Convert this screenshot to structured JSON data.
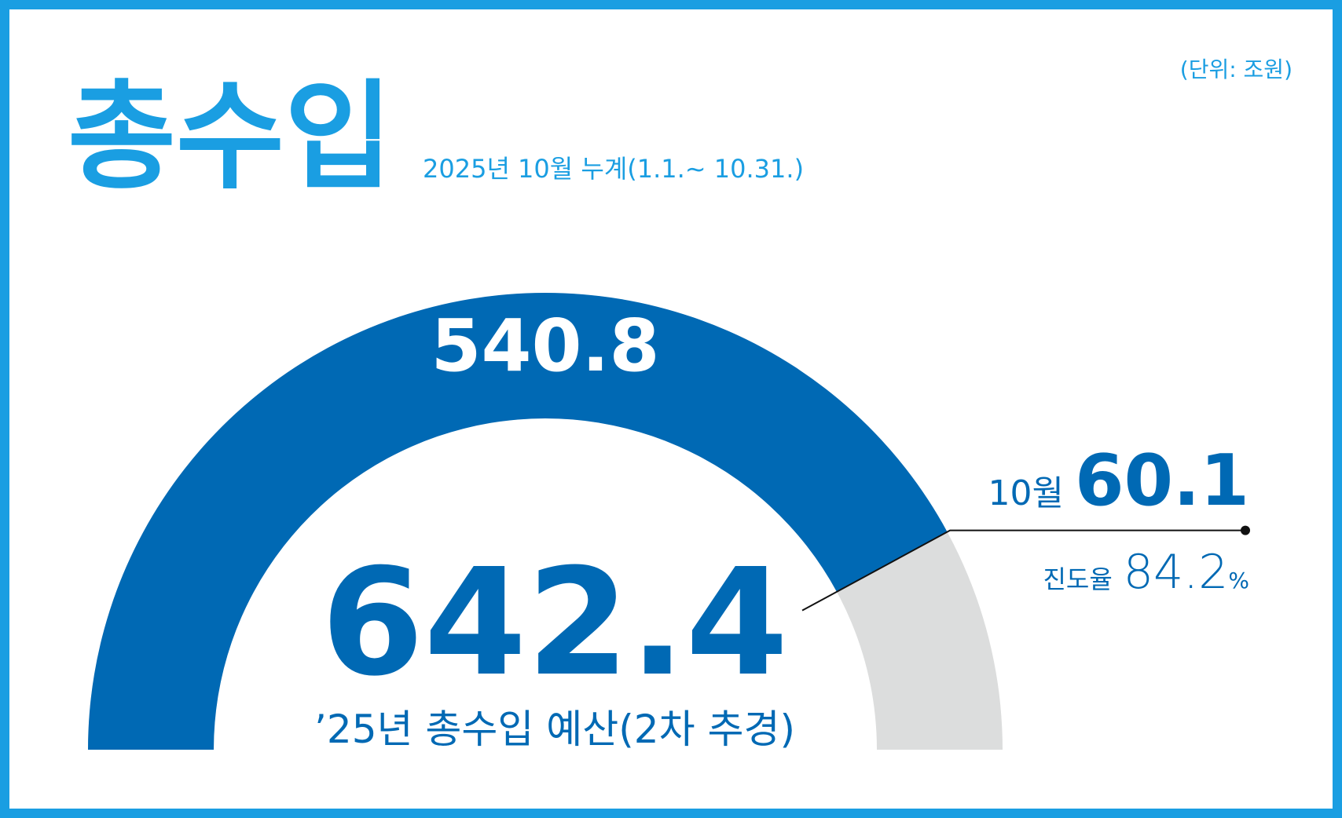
{
  "chart_data": {
    "type": "gauge",
    "title": "총수입",
    "subtitle": "2025년 10월 누계(1.1.~ 10.31.)",
    "unit_note": "(단위: 조원)",
    "value": 540.8,
    "target": 642.4,
    "target_label": "’25년 총수입 예산(2차 추경)",
    "month_label": "10월",
    "month_value": 60.1,
    "progress_label": "진도율",
    "progress": 84.2,
    "progress_unit": "%",
    "color": "#0069b4",
    "rest_color": "#dcdddd",
    "accent_color": "#1a9ee2"
  }
}
